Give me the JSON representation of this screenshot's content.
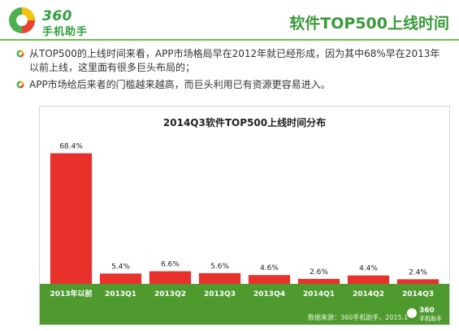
{
  "header": {
    "logo_line1": "360",
    "logo_line2": "手机助手",
    "title": "软件TOP500上线时间"
  },
  "bullets": [
    "从TOP500的上线时间来看，APP市场格局早在2012年就已经形成，因为其中68%早在2013年以前上线，这里面有很多巨头布局的；",
    "APP市场给后来者的门槛越来越高，而巨头利用已有资源更容易进入。"
  ],
  "chart_data": {
    "type": "bar",
    "title": "2014Q3软件TOP500上线时间分布",
    "categories": [
      "2013年以前",
      "2013Q1",
      "2013Q2",
      "2013Q3",
      "2013Q4",
      "2014Q1",
      "2014Q2",
      "2014Q3"
    ],
    "values": [
      68.4,
      5.4,
      6.6,
      5.6,
      4.6,
      2.6,
      4.4,
      2.4
    ],
    "data_labels": [
      "68.4%",
      "5.4%",
      "6.6%",
      "5.6%",
      "4.6%",
      "2.6%",
      "4.4%",
      "2.4%"
    ],
    "ylim": [
      0,
      75
    ],
    "grid": false,
    "legend": "none",
    "source": "数据来源：360手机助手，2015.1",
    "source_logo_line1": "360",
    "source_logo_line2": "手机助手",
    "colors": {
      "bar": "#e8312b",
      "axis_band": "#4f9a2e",
      "tick_text": "#ffffff"
    }
  }
}
